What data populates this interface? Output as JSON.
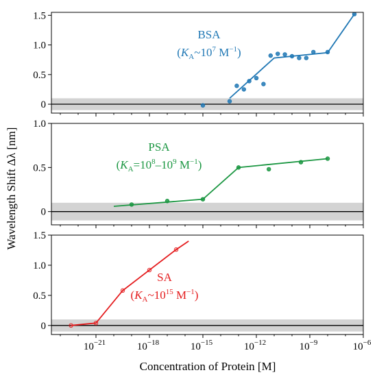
{
  "chart_data": [
    {
      "type": "scatter",
      "annotation": [
        "BSA",
        "(K",
        "A",
        "~10",
        "7",
        " M",
        "−1",
        ")"
      ],
      "color": "#1f77b4",
      "ylim": [
        -0.15,
        1.55
      ],
      "yticks": [
        0,
        0.5,
        1.0,
        1.5
      ],
      "ytick_labels": [
        "0",
        "0.5",
        "1.0",
        "1.5"
      ],
      "threshold_band": [
        -0.1,
        0.1
      ],
      "points": [
        {
          "x": -15,
          "y": -0.02
        },
        {
          "x": -13.5,
          "y": 0.05
        },
        {
          "x": -13.1,
          "y": 0.31
        },
        {
          "x": -12.7,
          "y": 0.25
        },
        {
          "x": -12.4,
          "y": 0.39
        },
        {
          "x": -12.0,
          "y": 0.44
        },
        {
          "x": -11.6,
          "y": 0.34
        },
        {
          "x": -11.2,
          "y": 0.82
        },
        {
          "x": -10.8,
          "y": 0.85
        },
        {
          "x": -10.4,
          "y": 0.84
        },
        {
          "x": -10.0,
          "y": 0.81
        },
        {
          "x": -9.6,
          "y": 0.78
        },
        {
          "x": -9.2,
          "y": 0.78
        },
        {
          "x": -8.8,
          "y": 0.88
        },
        {
          "x": -8.0,
          "y": 0.88
        },
        {
          "x": -6.5,
          "y": 1.52
        }
      ],
      "fit_line": [
        [
          -13.5,
          0.1
        ],
        [
          -11.0,
          0.78
        ],
        [
          -8.0,
          0.87
        ],
        [
          -6.5,
          1.52
        ]
      ]
    },
    {
      "type": "scatter",
      "annotation": [
        "PSA",
        "(K",
        "A",
        "=10",
        "8",
        "–10",
        "9",
        " M",
        "−1",
        ")"
      ],
      "color": "#1a9641",
      "ylim": [
        -0.15,
        1.0
      ],
      "yticks": [
        0,
        0.5,
        1.0
      ],
      "ytick_labels": [
        "0",
        "0.5",
        "1.0"
      ],
      "threshold_band": [
        -0.1,
        0.1
      ],
      "points": [
        {
          "x": -19.0,
          "y": 0.08
        },
        {
          "x": -17.0,
          "y": 0.12
        },
        {
          "x": -15.0,
          "y": 0.14
        },
        {
          "x": -13.0,
          "y": 0.5
        },
        {
          "x": -11.3,
          "y": 0.48
        },
        {
          "x": -9.5,
          "y": 0.56
        },
        {
          "x": -8.0,
          "y": 0.6
        }
      ],
      "fit_line": [
        [
          -20.0,
          0.06
        ],
        [
          -15.0,
          0.14
        ],
        [
          -13.0,
          0.5
        ],
        [
          -8.0,
          0.6
        ]
      ]
    },
    {
      "type": "scatter",
      "annotation": [
        "SA",
        "(K",
        "A",
        "~10",
        "15",
        " M",
        "−1",
        ")"
      ],
      "color": "#e41a1c",
      "ylim": [
        -0.15,
        1.5
      ],
      "yticks": [
        0,
        0.5,
        1.0,
        1.5
      ],
      "ytick_labels": [
        "0",
        "0.5",
        "1.0",
        "1.5"
      ],
      "threshold_band": [
        -0.1,
        0.1
      ],
      "points": [
        {
          "x": -22.4,
          "y": 0.0
        },
        {
          "x": -21.0,
          "y": 0.04
        },
        {
          "x": -19.5,
          "y": 0.58
        },
        {
          "x": -18.0,
          "y": 0.92
        },
        {
          "x": -16.5,
          "y": 1.26
        }
      ],
      "fit_line": [
        [
          -22.4,
          0.0
        ],
        [
          -21.0,
          0.04
        ],
        [
          -19.5,
          0.58
        ],
        [
          -18.0,
          0.92
        ],
        [
          -16.5,
          1.26
        ],
        [
          -15.8,
          1.4
        ]
      ]
    }
  ],
  "xaxis": {
    "label": "Concentration of Protein [M]",
    "log_scale": true,
    "xlim_exponent": [
      -23.5,
      -6
    ],
    "ticks": [
      {
        "exp": -21,
        "base": "10",
        "sup": "−21"
      },
      {
        "exp": -18,
        "base": "10",
        "sup": "−18"
      },
      {
        "exp": -15,
        "base": "10",
        "sup": "−15"
      },
      {
        "exp": -12,
        "base": "10",
        "sup": "−12"
      },
      {
        "exp": -9,
        "base": "10",
        "sup": "−9"
      },
      {
        "exp": -6,
        "base": "10",
        "sup": "−6"
      }
    ]
  },
  "yaxis": {
    "label": "Wavelength Shift Δλ [nm]"
  }
}
